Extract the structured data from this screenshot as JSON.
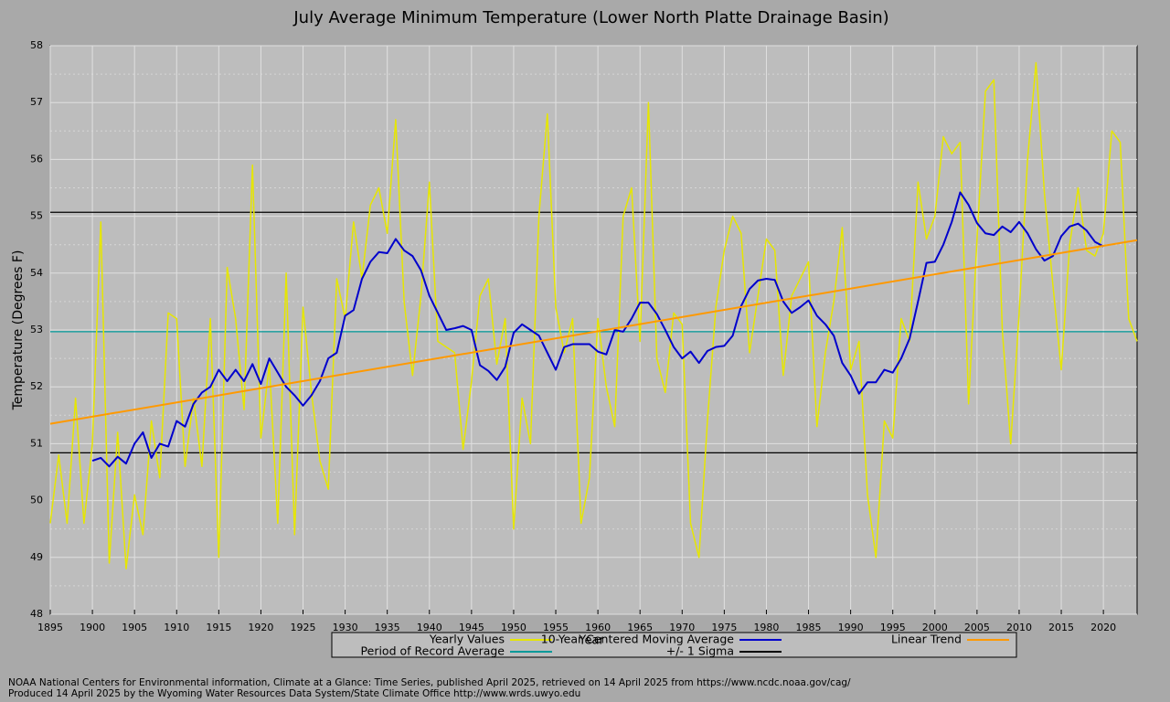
{
  "chart_data": {
    "type": "line",
    "title": "July Average Minimum Temperature (Lower North Platte Drainage Basin)",
    "xlabel": "Year",
    "ylabel": "Temperature (Degrees F)",
    "x": [
      1895,
      1896,
      1897,
      1898,
      1899,
      1900,
      1901,
      1902,
      1903,
      1904,
      1905,
      1906,
      1907,
      1908,
      1909,
      1910,
      1911,
      1912,
      1913,
      1914,
      1915,
      1916,
      1917,
      1918,
      1919,
      1920,
      1921,
      1922,
      1923,
      1924,
      1925,
      1926,
      1927,
      1928,
      1929,
      1930,
      1931,
      1932,
      1933,
      1934,
      1935,
      1936,
      1937,
      1938,
      1939,
      1940,
      1941,
      1942,
      1943,
      1944,
      1945,
      1946,
      1947,
      1948,
      1949,
      1950,
      1951,
      1952,
      1953,
      1954,
      1955,
      1956,
      1957,
      1958,
      1959,
      1960,
      1961,
      1962,
      1963,
      1964,
      1965,
      1966,
      1967,
      1968,
      1969,
      1970,
      1971,
      1972,
      1973,
      1974,
      1975,
      1976,
      1977,
      1978,
      1979,
      1980,
      1981,
      1982,
      1983,
      1984,
      1985,
      1986,
      1987,
      1988,
      1989,
      1990,
      1991,
      1992,
      1993,
      1994,
      1995,
      1996,
      1997,
      1998,
      1999,
      2000,
      2001,
      2002,
      2003,
      2004,
      2005,
      2006,
      2007,
      2008,
      2009,
      2010,
      2011,
      2012,
      2013,
      2014,
      2015,
      2016,
      2017,
      2018,
      2019,
      2020,
      2021,
      2022,
      2023,
      2024
    ],
    "series": [
      {
        "name": "Yearly Values",
        "color": "#e6e600",
        "values": [
          49.6,
          50.8,
          49.6,
          51.8,
          49.6,
          51.0,
          54.9,
          48.9,
          51.2,
          48.8,
          50.1,
          49.4,
          51.4,
          50.4,
          53.3,
          53.2,
          50.6,
          51.8,
          50.6,
          53.2,
          49.0,
          54.1,
          53.2,
          51.6,
          55.9,
          51.1,
          52.4,
          49.6,
          54.0,
          49.4,
          53.4,
          51.9,
          50.7,
          50.2,
          53.9,
          53.2,
          54.9,
          53.9,
          55.2,
          55.5,
          54.7,
          56.7,
          53.5,
          52.2,
          53.6,
          55.6,
          52.8,
          52.7,
          52.6,
          50.9,
          52.1,
          53.6,
          53.9,
          52.4,
          53.2,
          49.5,
          51.8,
          51.0,
          55.0,
          56.8,
          53.4,
          52.6,
          53.2,
          49.6,
          50.4,
          53.2,
          52.0,
          51.3,
          55.0,
          55.5,
          52.8,
          57.0,
          52.5,
          51.9,
          53.3,
          53.1,
          49.6,
          49.0,
          51.4,
          53.4,
          54.4,
          55.0,
          54.7,
          52.6,
          53.6,
          54.6,
          54.4,
          52.2,
          53.6,
          53.9,
          54.2,
          51.3,
          52.6,
          53.5,
          54.8,
          52.3,
          52.8,
          50.1,
          49.0,
          51.4,
          51.1,
          53.2,
          52.8,
          55.6,
          54.6,
          55.0,
          56.4,
          56.1,
          56.3,
          51.7,
          54.6,
          57.2,
          57.4,
          53.0,
          51.0,
          53.3,
          56.0,
          57.7,
          55.4,
          53.8,
          52.3,
          54.5,
          55.5,
          54.4,
          54.3,
          54.7,
          56.5,
          56.3,
          53.2,
          52.8
        ]
      },
      {
        "name": "10-Year Centered Moving Average",
        "color": "#0000cc",
        "values": [
          null,
          null,
          null,
          null,
          null,
          50.7,
          50.75,
          50.6,
          50.77,
          50.65,
          51.0,
          51.2,
          50.75,
          51.0,
          50.95,
          51.4,
          51.3,
          51.7,
          51.9,
          52.0,
          52.3,
          52.1,
          52.3,
          52.1,
          52.4,
          52.05,
          52.5,
          52.25,
          52.0,
          51.85,
          51.67,
          51.85,
          52.1,
          52.5,
          52.6,
          53.25,
          53.35,
          53.9,
          54.2,
          54.37,
          54.35,
          54.6,
          54.4,
          54.3,
          54.05,
          53.6,
          53.3,
          53.0,
          53.03,
          53.07,
          53.0,
          52.38,
          52.28,
          52.12,
          52.35,
          52.95,
          53.1,
          53.0,
          52.9,
          52.6,
          52.3,
          52.7,
          52.75,
          52.75,
          52.75,
          52.62,
          52.57,
          53.0,
          52.97,
          53.2,
          53.48,
          53.48,
          53.28,
          53.0,
          52.7,
          52.5,
          52.62,
          52.42,
          52.63,
          52.7,
          52.72,
          52.9,
          53.42,
          53.72,
          53.87,
          53.9,
          53.88,
          53.5,
          53.3,
          53.4,
          53.52,
          53.25,
          53.1,
          52.9,
          52.42,
          52.2,
          51.88,
          52.08,
          52.08,
          52.3,
          52.25,
          52.5,
          52.85,
          53.5,
          54.18,
          54.2,
          54.5,
          54.9,
          55.42,
          55.2,
          54.88,
          54.7,
          54.67,
          54.82,
          54.72,
          54.9,
          54.7,
          54.42,
          54.22,
          54.3,
          54.65,
          54.82,
          54.87,
          54.75,
          54.55,
          54.47,
          null,
          null,
          null,
          null
        ]
      }
    ],
    "trend": {
      "name": "Linear Trend",
      "color": "#ff9900",
      "x": [
        1895,
        2024
      ],
      "values": [
        51.35,
        54.58
      ]
    },
    "average": {
      "name": "Period of Record Average",
      "color": "#009999",
      "value": 52.97
    },
    "sigma": {
      "name": "+/- 1 Sigma",
      "color": "#000000",
      "values": [
        55.07,
        50.84
      ]
    },
    "xlim": [
      1895,
      2024
    ],
    "ylim": [
      48,
      58
    ],
    "xticks": [
      1895,
      1900,
      1905,
      1910,
      1915,
      1920,
      1925,
      1930,
      1935,
      1940,
      1945,
      1950,
      1955,
      1960,
      1965,
      1970,
      1975,
      1980,
      1985,
      1990,
      1995,
      2000,
      2005,
      2010,
      2015,
      2020
    ],
    "yticks": [
      48,
      49,
      50,
      51,
      52,
      53,
      54,
      55,
      56,
      57,
      58
    ],
    "grid": true,
    "notes": [
      "NOAA National Centers for Environmental information, Climate at a Glance: Time Series, published April 2025, retrieved on 14 April 2025 from https://www.ncdc.noaa.gov/cag/",
      "Produced 14 April 2025 by the Wyoming Water Resources Data System/State Climate Office http://www.wrds.uwyo.edu"
    ]
  }
}
